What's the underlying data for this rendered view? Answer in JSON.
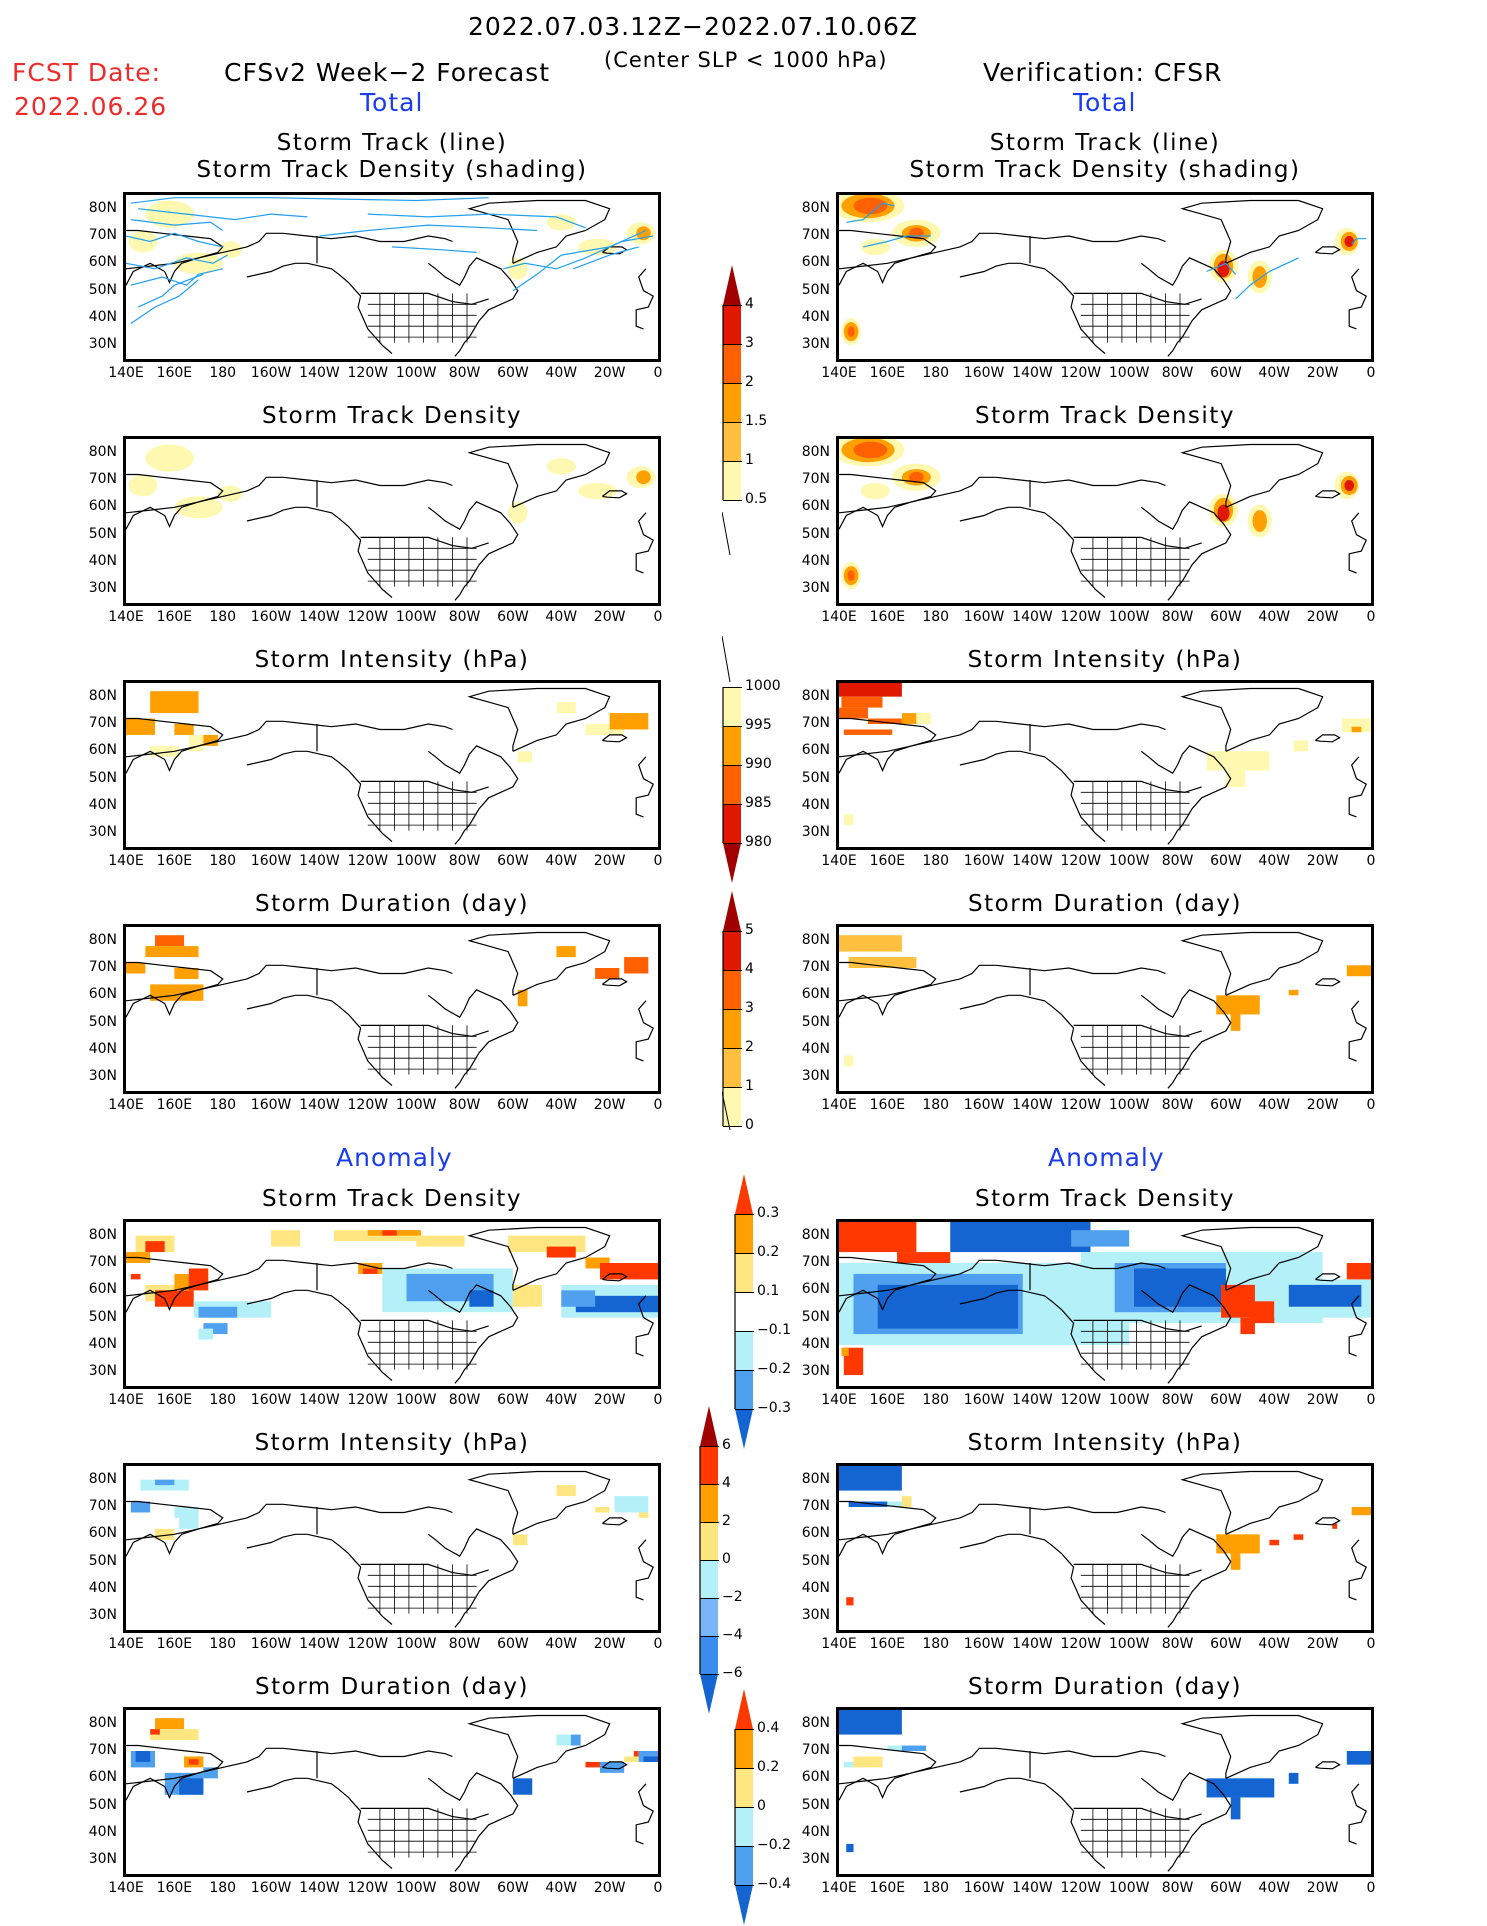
{
  "header": {
    "period": "2022.07.03.12Z−2022.07.10.06Z",
    "criterion": "(Center SLP < 1000 hPa)",
    "fcst_date_label": "FCST Date:",
    "fcst_date_value": "2022.06.26",
    "left_title": "CFSv2 Week−2 Forecast",
    "right_title": "Verification: CFSR",
    "total_label": "Total",
    "anomaly_label": "Anomaly"
  },
  "axes": {
    "lat_ticks": [
      "80N",
      "70N",
      "60N",
      "50N",
      "40N",
      "30N"
    ],
    "lon_ticks": [
      "140E",
      "160E",
      "180",
      "160W",
      "140W",
      "120W",
      "100W",
      "80W",
      "60W",
      "40W",
      "20W",
      "0"
    ]
  },
  "panels": {
    "total": [
      {
        "title_line1": "Storm Track (line)",
        "title_line2": "Storm Track Density (shading)"
      },
      {
        "title_line1": "Storm Track Density",
        "title_line2": ""
      },
      {
        "title_line1": "Storm Intensity (hPa)",
        "title_line2": ""
      },
      {
        "title_line1": "Storm Duration (day)",
        "title_line2": ""
      }
    ],
    "anomaly": [
      {
        "title_line1": "Storm Track Density"
      },
      {
        "title_line1": "Storm Intensity (hPa)"
      },
      {
        "title_line1": "Storm Duration (day)"
      }
    ]
  },
  "colorbars": {
    "density_total": {
      "labels": [
        "4",
        "3",
        "2",
        "1.5",
        "1",
        "0.5"
      ],
      "colors": [
        "#a00000",
        "#e01800",
        "#ff6000",
        "#ffa000",
        "#ffc040",
        "#fff8b0"
      ]
    },
    "intensity_total": {
      "labels": [
        "1000",
        "995",
        "990",
        "985",
        "980"
      ],
      "colors": [
        "#fff8b0",
        "#ffa000",
        "#ff6000",
        "#e01800",
        "#a00000"
      ]
    },
    "duration_total": {
      "labels": [
        "5",
        "4",
        "3",
        "2",
        "1",
        "0"
      ],
      "colors": [
        "#a00000",
        "#e01800",
        "#ff6000",
        "#ffa000",
        "#ffc040",
        "#fff8b0"
      ]
    },
    "density_anom": {
      "labels": [
        "0.3",
        "0.2",
        "0.1",
        "−0.1",
        "−0.2",
        "−0.3"
      ],
      "colors": [
        "#ff3800",
        "#ffa000",
        "#ffe680",
        "#ffffff",
        "#b4f0f8",
        "#50a0f0",
        "#1464d2"
      ]
    },
    "intensity_anom": {
      "labels": [
        "6",
        "4",
        "2",
        "0",
        "−2",
        "−4",
        "−6"
      ],
      "colors": [
        "#a00000",
        "#ff3800",
        "#ffa000",
        "#ffe680",
        "#b4f0f8",
        "#78b4f8",
        "#3c8cf0",
        "#1464d2"
      ]
    },
    "duration_anom": {
      "labels": [
        "0.4",
        "0.2",
        "0",
        "−0.2",
        "−0.4"
      ],
      "colors": [
        "#ff3800",
        "#ffa000",
        "#ffe680",
        "#b4f0f8",
        "#50a0f0",
        "#1464d2"
      ]
    }
  },
  "colors": {
    "track_line": "#20a0f0",
    "title_red": "#ee2b2b",
    "title_blue": "#1a3cf0"
  }
}
